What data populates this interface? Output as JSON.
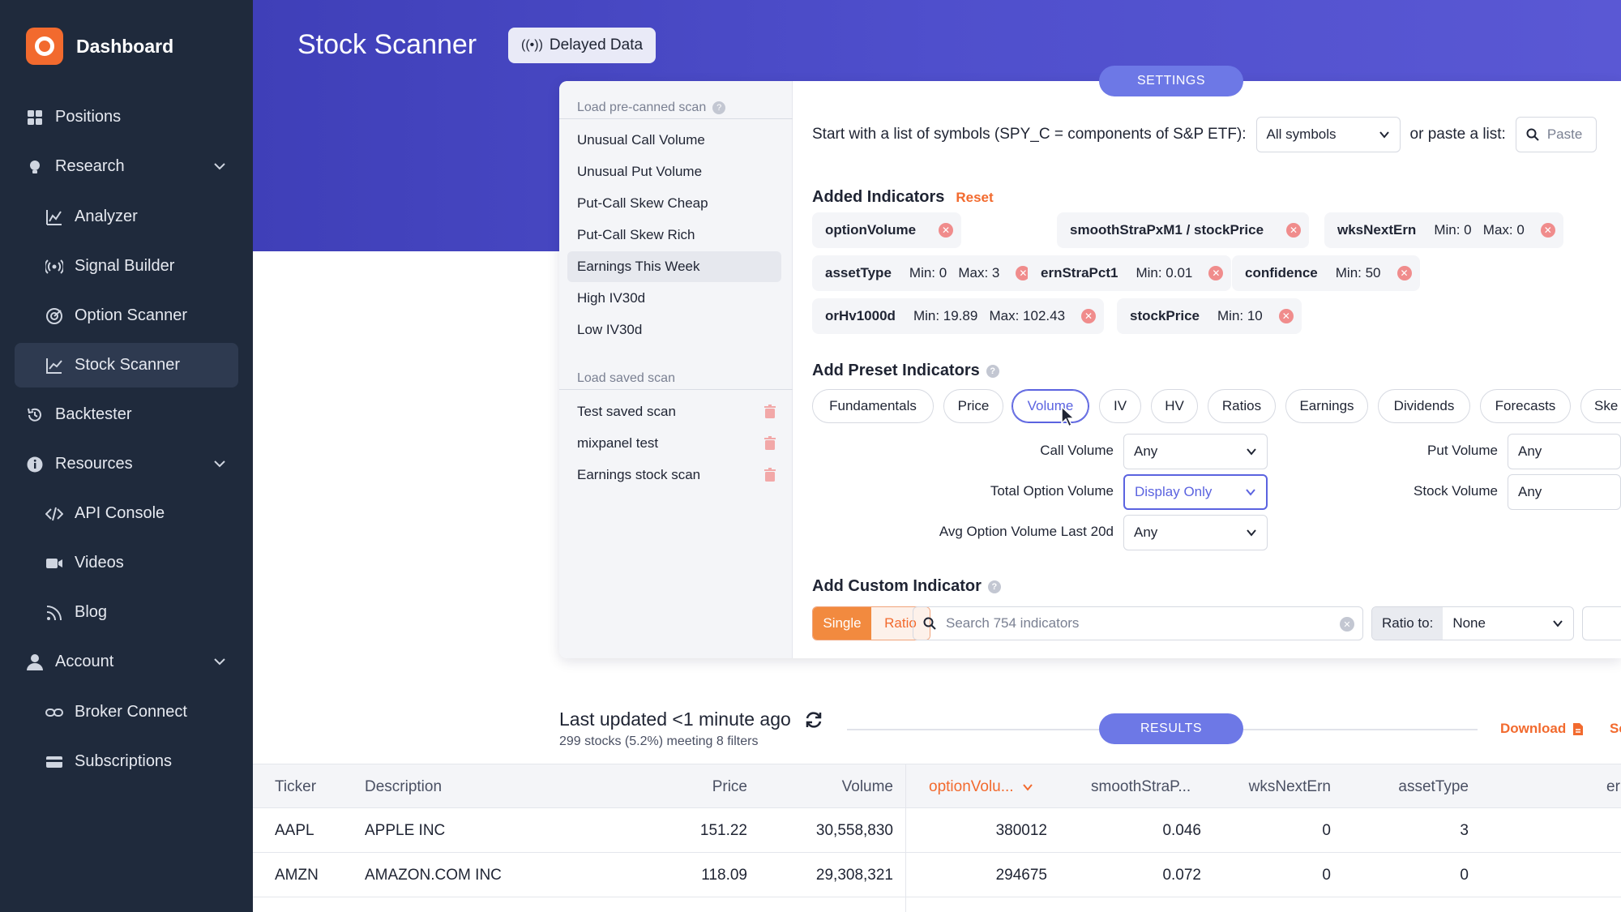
{
  "app": {
    "brand": "Dashboard",
    "page_title": "Stock Scanner",
    "delayed_label": "Delayed Data"
  },
  "sidebar": {
    "items": [
      {
        "label": "Positions",
        "icon": "grid-icon"
      },
      {
        "label": "Research",
        "icon": "lightbulb-icon",
        "expandable": true
      },
      {
        "label": "Analyzer",
        "icon": "chart-icon"
      },
      {
        "label": "Signal Builder",
        "icon": "signal-icon"
      },
      {
        "label": "Option Scanner",
        "icon": "radar-icon"
      },
      {
        "label": "Stock Scanner",
        "icon": "line-chart-icon",
        "active": true
      },
      {
        "label": "Backtester",
        "icon": "history-icon"
      },
      {
        "label": "Resources",
        "icon": "info-icon",
        "expandable": true
      },
      {
        "label": "API Console",
        "icon": "code-icon"
      },
      {
        "label": "Videos",
        "icon": "video-icon"
      },
      {
        "label": "Blog",
        "icon": "rss-icon"
      },
      {
        "label": "Account",
        "icon": "user-icon",
        "expandable": true
      },
      {
        "label": "Broker Connect",
        "icon": "link-icon"
      },
      {
        "label": "Subscriptions",
        "icon": "card-icon"
      }
    ]
  },
  "settings_label": "SETTINGS",
  "precanned": {
    "title": "Load pre-canned scan",
    "items": [
      "Unusual Call Volume",
      "Unusual Put Volume",
      "Put-Call Skew Cheap",
      "Put-Call Skew Rich",
      "Earnings This Week",
      "High IV30d",
      "Low IV30d"
    ]
  },
  "saved": {
    "title": "Load saved scan",
    "items": [
      "Test saved scan",
      "mixpanel test",
      "Earnings stock scan"
    ]
  },
  "symbols": {
    "label": "Start with a list of symbols (SPY_C = components of S&P ETF):",
    "selected": "All symbols",
    "paste_label": "or paste a list:",
    "paste_placeholder": "Paste"
  },
  "added": {
    "title": "Added Indicators",
    "reset": "Reset",
    "chips": [
      {
        "name": "optionVolume",
        "limits": ""
      },
      {
        "name": "smoothStraPxM1 / stockPrice",
        "limits": ""
      },
      {
        "name": "wksNextErn",
        "limits": "Min: 0   Max: 0"
      },
      {
        "name": "assetType",
        "limits": "Min: 0   Max: 3"
      },
      {
        "name": "ernStraPct1",
        "limits": "Min: 0.01"
      },
      {
        "name": "confidence",
        "limits": "Min: 50"
      },
      {
        "name": "orHv1000d",
        "limits": "Min: 19.89   Max: 102.43"
      },
      {
        "name": "stockPrice",
        "limits": "Min: 10"
      }
    ]
  },
  "preset": {
    "title": "Add Preset Indicators",
    "tabs": [
      "Fundamentals",
      "Price",
      "Volume",
      "IV",
      "HV",
      "Ratios",
      "Earnings",
      "Dividends",
      "Forecasts",
      "Ske"
    ],
    "selected_tab": "Volume",
    "fields": [
      {
        "label": "Call Volume",
        "value": "Any"
      },
      {
        "label": "Total Option Volume",
        "value": "Display Only"
      },
      {
        "label": "Avg Option Volume Last 20d",
        "value": "Any"
      },
      {
        "label": "Put Volume",
        "value": "Any"
      },
      {
        "label": "Stock Volume",
        "value": "Any"
      }
    ]
  },
  "custom": {
    "title": "Add Custom Indicator",
    "single": "Single",
    "ratio": "Ratio",
    "search_placeholder": "Search 754 indicators",
    "ratio_to_label": "Ratio to:",
    "ratio_to_value": "None"
  },
  "results": {
    "updated": "Last updated <1 minute ago",
    "summary": "299 stocks (5.2%) meeting 8 filters",
    "label": "RESULTS",
    "download": "Download",
    "cut_text": "Se"
  },
  "table": {
    "headers": [
      "Ticker",
      "Description",
      "Price",
      "Volume",
      "optionVolu...",
      "smoothStraP...",
      "wksNextErn",
      "assetType",
      "er"
    ],
    "rows": [
      [
        "AAPL",
        "APPLE INC",
        "151.22",
        "30,558,830",
        "380012",
        "0.046",
        "0",
        "3"
      ],
      [
        "AMZN",
        "AMAZON.COM INC",
        "118.09",
        "29,308,321",
        "294675",
        "0.072",
        "0",
        "0"
      ]
    ]
  },
  "colors": {
    "accent": "#f26a2e",
    "primary": "#5b63e0",
    "sidebar": "#1f2a3c"
  }
}
